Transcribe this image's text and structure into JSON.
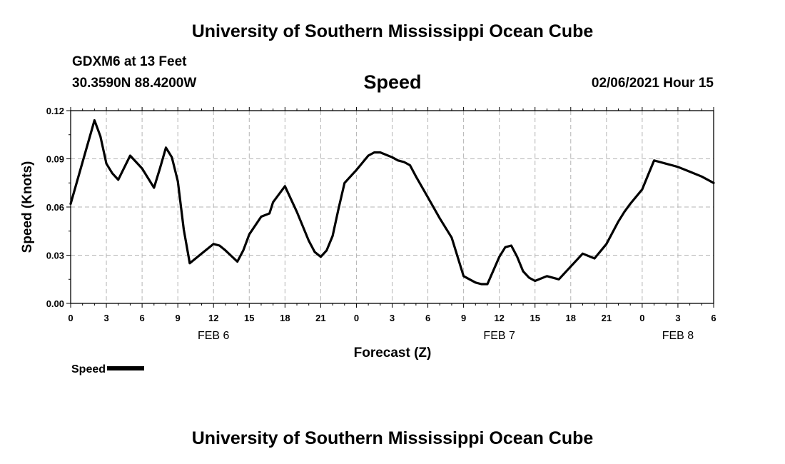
{
  "header": {
    "title": "University of Southern Mississippi Ocean Cube",
    "station": "GDXM6 at 13 Feet",
    "coordinates": "30.3590N 88.4200W",
    "variable": "Speed",
    "datetime": "02/06/2021 Hour 15"
  },
  "footer": {
    "title": "University of Southern Mississippi Ocean Cube"
  },
  "legend": {
    "label": "Speed"
  },
  "colors": {
    "line": "#000000",
    "grid": "#b4b4b4",
    "background": "#ffffff"
  },
  "chart_data": {
    "type": "line",
    "title": "Speed",
    "xlabel": "Forecast (Z)",
    "ylabel": "Speed (Knots)",
    "ylim": [
      0,
      0.12
    ],
    "xlim": [
      0,
      54
    ],
    "y_ticks": [
      "0.00",
      "0.03",
      "0.06",
      "0.09",
      "0.12"
    ],
    "x_ticks": [
      "0",
      "3",
      "6",
      "9",
      "12",
      "15",
      "18",
      "21",
      "0",
      "3",
      "6",
      "9",
      "12",
      "15",
      "18",
      "21",
      "0",
      "3",
      "6"
    ],
    "date_labels": [
      {
        "label": "FEB 6",
        "hour": 12
      },
      {
        "label": "FEB 7",
        "hour": 36
      },
      {
        "label": "FEB 8",
        "hour": 51
      }
    ],
    "grid": true,
    "legend_position": "bottom-left",
    "series": [
      {
        "name": "Speed",
        "x": [
          0,
          1,
          2,
          2.5,
          3,
          3.5,
          4,
          5,
          6,
          7,
          7.5,
          8,
          8.5,
          9,
          9.5,
          10,
          11,
          12,
          12.5,
          13,
          14,
          14.5,
          15,
          16,
          16.7,
          17,
          18,
          19,
          20,
          20.5,
          21,
          21.5,
          22,
          22.5,
          23,
          24,
          25,
          25.5,
          26,
          27,
          27.5,
          28,
          28.5,
          29,
          30,
          31,
          32,
          33,
          34,
          34.5,
          35,
          36,
          36.5,
          37,
          37.5,
          38,
          38.5,
          39,
          40,
          41,
          42,
          43,
          44,
          45,
          46,
          46.5,
          47,
          48,
          48.5,
          49,
          49.5,
          50,
          50.5,
          51,
          52,
          53,
          54
        ],
        "y": [
          0.062,
          0.088,
          0.114,
          0.104,
          0.087,
          0.081,
          0.077,
          0.092,
          0.084,
          0.072,
          0.084,
          0.097,
          0.091,
          0.076,
          0.046,
          0.025,
          0.031,
          0.037,
          0.036,
          0.033,
          0.026,
          0.033,
          0.043,
          0.054,
          0.056,
          0.063,
          0.073,
          0.057,
          0.039,
          0.032,
          0.029,
          0.033,
          0.042,
          0.059,
          0.075,
          0.083,
          0.092,
          0.094,
          0.094,
          0.091,
          0.089,
          0.088,
          0.086,
          0.079,
          0.066,
          0.053,
          0.041,
          0.017,
          0.013,
          0.012,
          0.012,
          0.029,
          0.035,
          0.036,
          0.029,
          0.02,
          0.016,
          0.014,
          0.017,
          0.015,
          0.023,
          0.031,
          0.028,
          0.037,
          0.051,
          0.057,
          0.062,
          0.071,
          0.08,
          0.089,
          0.088,
          0.087,
          0.086,
          0.085,
          0.082,
          0.079,
          0.075
        ]
      }
    ]
  }
}
